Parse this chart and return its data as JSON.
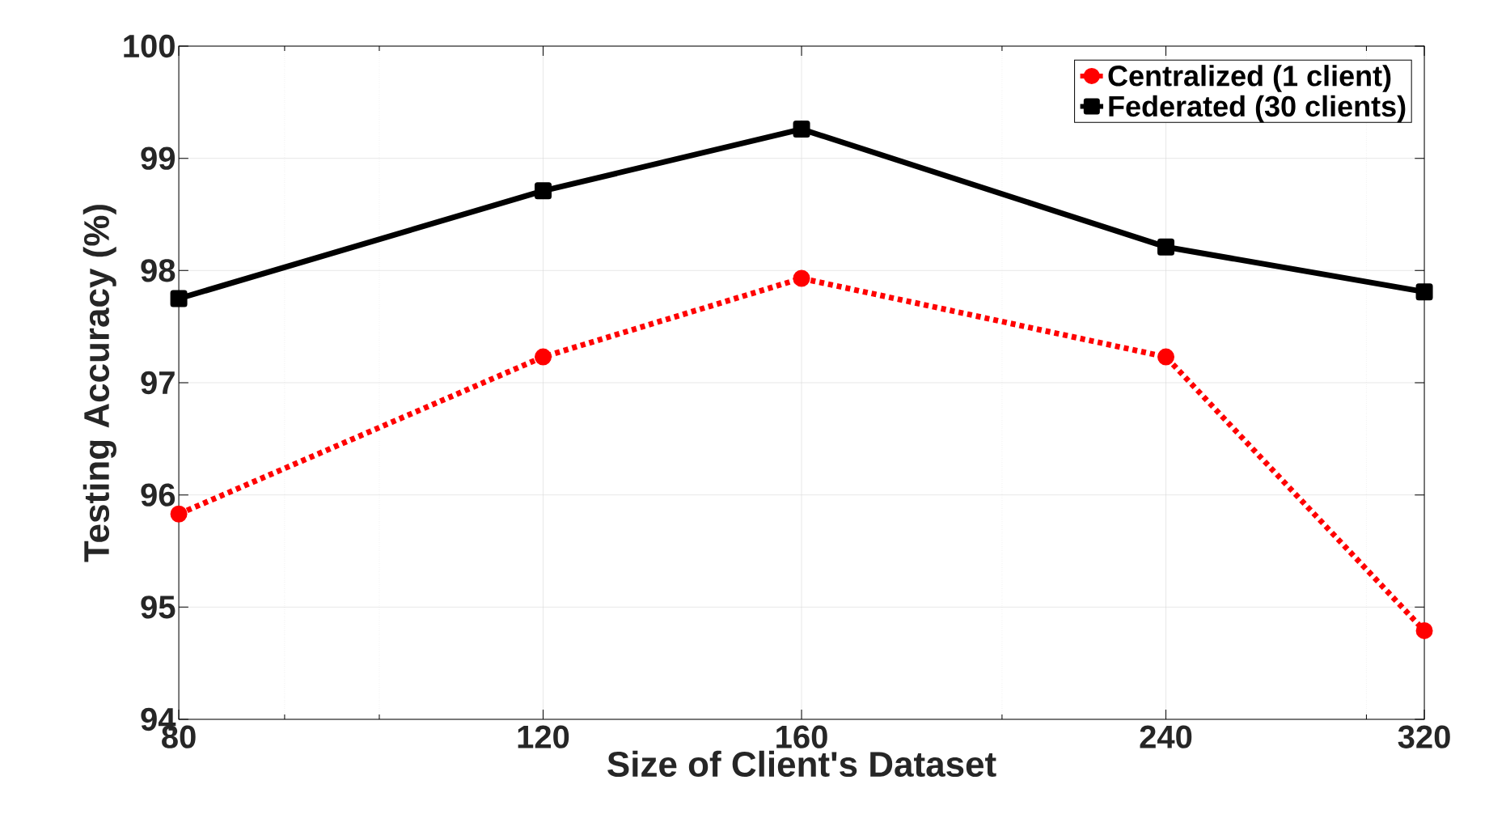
{
  "chart_data": {
    "type": "line",
    "xlabel": "Size of Client's Dataset",
    "ylabel": "Testing Accuracy (%)",
    "x": [
      80,
      120,
      160,
      240,
      320
    ],
    "log": "x",
    "xlim": [
      80,
      320
    ],
    "xticks": [
      80,
      120,
      160,
      240,
      320
    ],
    "ylim": [
      94,
      100
    ],
    "yticks": [
      94,
      95,
      96,
      97,
      98,
      99,
      100
    ],
    "grid": true,
    "legend": "top right",
    "series": [
      {
        "name": "Centralized (1 client)",
        "color": "#ff0000",
        "values": [
          95.83,
          97.23,
          97.93,
          97.23,
          94.79
        ],
        "marker": "circle",
        "line_style": "dotted"
      },
      {
        "name": "Federated (30 clients)",
        "color": "#000000",
        "values": [
          97.75,
          98.71,
          99.26,
          98.21,
          97.81
        ],
        "marker": "square",
        "line_style": "solid"
      }
    ]
  }
}
